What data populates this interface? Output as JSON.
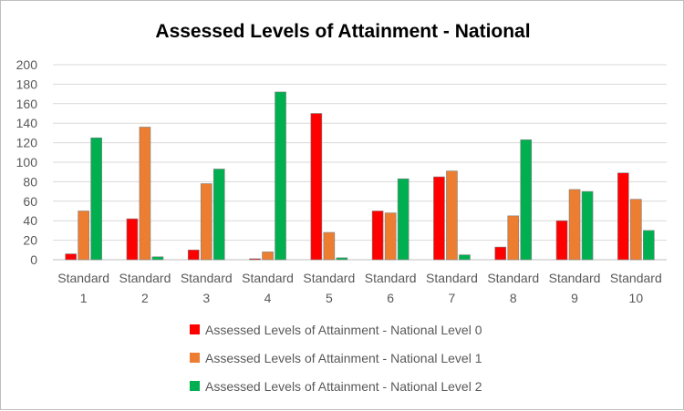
{
  "chart_data": {
    "type": "bar",
    "title": "Assessed Levels of Attainment - National",
    "categories": [
      [
        "Standard",
        "1"
      ],
      [
        "Standard",
        "2"
      ],
      [
        "Standard",
        "3"
      ],
      [
        "Standard",
        "4"
      ],
      [
        "Standard",
        "5"
      ],
      [
        "Standard",
        "6"
      ],
      [
        "Standard",
        "7"
      ],
      [
        "Standard",
        "8"
      ],
      [
        "Standard",
        "9"
      ],
      [
        "Standard",
        "10"
      ]
    ],
    "series": [
      {
        "name": "Assessed Levels of Attainment - National Level 0",
        "color": "#ff0000",
        "values": [
          6,
          42,
          10,
          1,
          150,
          50,
          85,
          13,
          40,
          89
        ]
      },
      {
        "name": "Assessed Levels of Attainment - National Level 1",
        "color": "#ed7d31",
        "values": [
          50,
          136,
          78,
          8,
          28,
          48,
          91,
          45,
          72,
          62
        ]
      },
      {
        "name": "Assessed Levels of Attainment - National Level 2",
        "color": "#00b050",
        "values": [
          125,
          3,
          93,
          172,
          2,
          83,
          5,
          123,
          70,
          30
        ]
      }
    ],
    "ylim": [
      0,
      200
    ],
    "yticks": [
      "0",
      "20",
      "40",
      "60",
      "80",
      "100",
      "120",
      "140",
      "160",
      "180",
      "200"
    ],
    "grid": true,
    "legend_position": "bottom"
  }
}
